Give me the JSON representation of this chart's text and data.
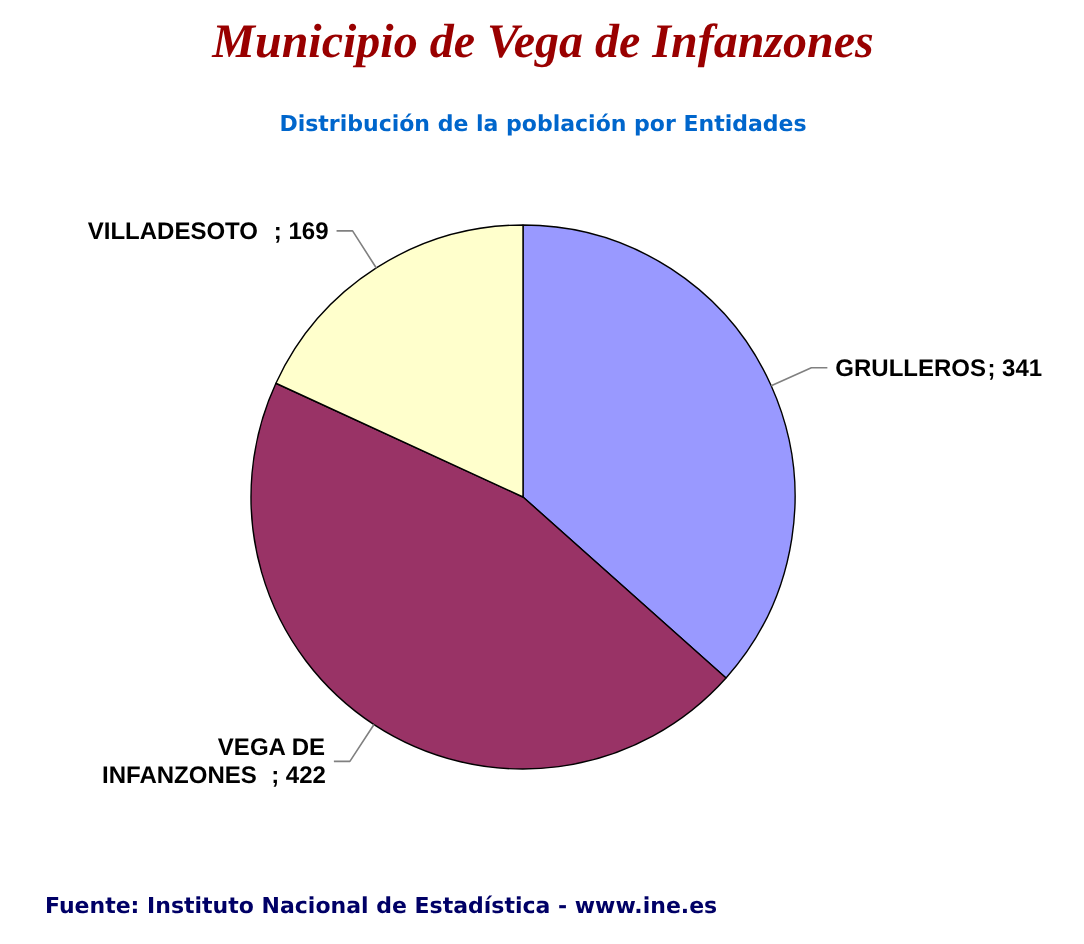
{
  "chart_data": {
    "type": "pie",
    "title": "Municipio de Vega de Infanzones",
    "subtitle": "Distribución de la población por Entidades",
    "categories": [
      "GRULLEROS",
      "VEGA DE INFANZONES",
      "VILLADESOTO"
    ],
    "values": [
      341,
      422,
      169
    ],
    "colors": [
      "#9999ff",
      "#993366",
      "#ffffcc"
    ],
    "value_labels": [
      "; 341",
      "; 422",
      "; 169"
    ],
    "annotations": [
      "Fuente: Instituto Nacional de Estadística - www.ine.es"
    ]
  }
}
